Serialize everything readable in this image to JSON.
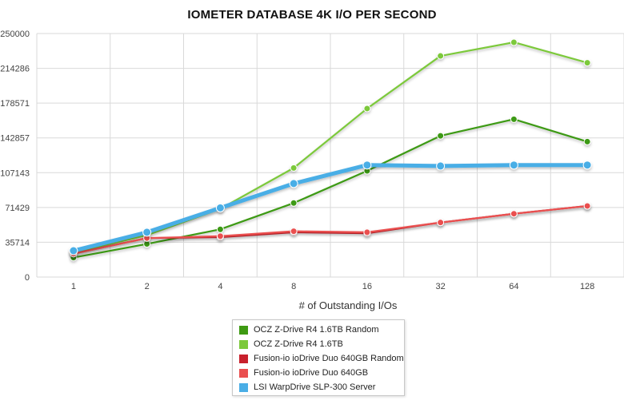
{
  "chart_data": {
    "type": "line",
    "title": "IOMETER DATABASE 4K I/O PER SECOND",
    "xlabel": "# of Outstanding I/Os",
    "ylabel": "",
    "categories": [
      "1",
      "2",
      "4",
      "8",
      "16",
      "32",
      "64",
      "128"
    ],
    "yticks": [
      "0",
      "35714",
      "71429",
      "107143",
      "142857",
      "178571",
      "214286",
      "250000"
    ],
    "ylim": [
      0,
      250000
    ],
    "grid": true,
    "legend_position": "bottom-center",
    "series": [
      {
        "name": "OCZ Z-Drive R4 1.6TB Random",
        "color": "#3e9a12",
        "values": [
          20000,
          34000,
          49000,
          76000,
          109000,
          145000,
          162000,
          139000
        ]
      },
      {
        "name": "OCZ Z-Drive R4 1.6TB",
        "color": "#7cc93b",
        "values": [
          25000,
          43000,
          70000,
          112000,
          173000,
          227000,
          241000,
          220000
        ]
      },
      {
        "name": "Fusion-io ioDrive Duo 640GB Random",
        "color": "#c8202c",
        "values": [
          24000,
          40000,
          41000,
          46000,
          45000,
          56000,
          65000,
          73000
        ]
      },
      {
        "name": "Fusion-io ioDrive Duo 640GB",
        "color": "#ea5050",
        "values": [
          24000,
          40000,
          42000,
          47000,
          46000,
          56000,
          65000,
          73000
        ]
      },
      {
        "name": "LSI WarpDrive SLP-300 Server",
        "color": "#4aaee6",
        "values": [
          27000,
          46000,
          71000,
          96000,
          115000,
          114000,
          115000,
          115000
        ]
      }
    ]
  }
}
